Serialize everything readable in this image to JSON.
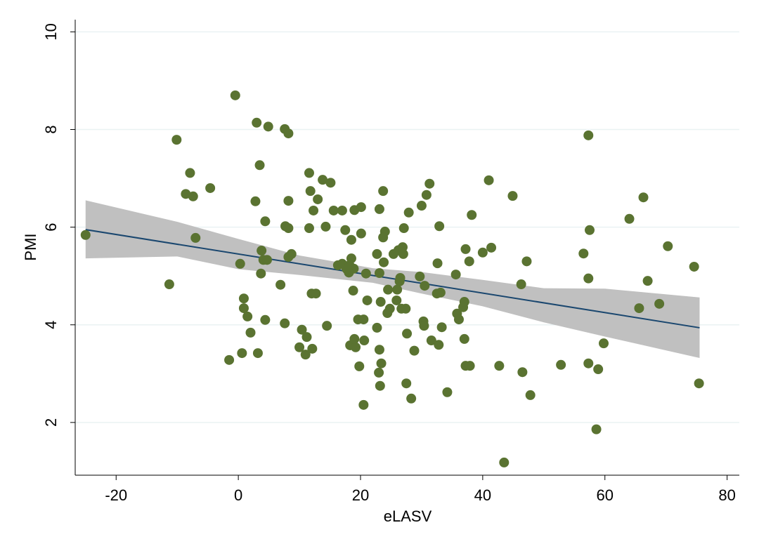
{
  "chart_data": {
    "type": "scatter",
    "x_label": "eLASV",
    "y_label": "PMI",
    "xlim": [
      -26.7,
      82.0
    ],
    "xticks": [
      -20,
      0,
      20,
      40,
      60,
      80
    ],
    "ylim": [
      0.92,
      10.25
    ],
    "yticks": [
      2,
      4,
      6,
      8,
      10
    ],
    "grid": true,
    "points": {
      "color": "#5a7331",
      "x": [
        -25.0,
        -11.3,
        -10.1,
        -7.9,
        -8.6,
        -7.4,
        -4.6,
        -7.0,
        -0.5,
        -1.5,
        0.3,
        0.9,
        0.9,
        1.5,
        2.0,
        0.6,
        3.0,
        4.9,
        2.8,
        3.5,
        4.4,
        3.8,
        4.1,
        4.7,
        3.7,
        4.4,
        3.2,
        7.6,
        8.2,
        8.2,
        7.7,
        8.2,
        8.7,
        8.2,
        6.9,
        7.6,
        10.4,
        11.2,
        10.0,
        11.0,
        12.1,
        11.6,
        11.8,
        13.0,
        12.3,
        11.6,
        12.0,
        12.7,
        13.8,
        15.1,
        14.3,
        14.5,
        15.6,
        17.0,
        19.0,
        20.1,
        17.5,
        20.1,
        18.5,
        16.3,
        17.0,
        17.9,
        18.5,
        18.2,
        18.9,
        18.1,
        17.7,
        18.8,
        20.9,
        21.1,
        19.6,
        20.5,
        18.3,
        19.2,
        19.0,
        20.6,
        19.8,
        20.5,
        23.7,
        23.1,
        24.0,
        23.7,
        22.7,
        23.8,
        23.1,
        25.4,
        26.2,
        26.9,
        27.0,
        27.1,
        27.9,
        30.8,
        31.3,
        30.0,
        32.9,
        32.6,
        29.7,
        30.5,
        32.5,
        33.1,
        24.5,
        26.0,
        26.4,
        26.5,
        25.9,
        23.3,
        24.8,
        24.4,
        26.7,
        27.4,
        22.7,
        23.1,
        23.4,
        23.0,
        23.2,
        27.6,
        27.5,
        28.3,
        28.8,
        30.3,
        30.4,
        31.6,
        32.8,
        33.3,
        34.2,
        35.6,
        35.8,
        36.1,
        36.8,
        37.0,
        37.0,
        37.2,
        37.9,
        37.2,
        37.8,
        38.2,
        40.0,
        41.4,
        41.0,
        44.9,
        42.7,
        43.5,
        46.3,
        47.2,
        46.5,
        47.8,
        52.8,
        57.3,
        57.5,
        56.5,
        57.3,
        57.3,
        58.9,
        58.6,
        59.8,
        64.0,
        66.3,
        65.6,
        67.0,
        68.9,
        70.3,
        74.6,
        75.4
      ],
      "values": [
        5.84,
        4.83,
        7.79,
        7.11,
        6.68,
        6.63,
        6.8,
        5.78,
        8.7,
        3.28,
        5.25,
        4.54,
        4.34,
        4.17,
        3.84,
        3.42,
        8.14,
        8.06,
        6.53,
        7.27,
        6.12,
        5.52,
        5.33,
        5.33,
        5.05,
        4.1,
        3.42,
        8.01,
        7.92,
        6.54,
        6.02,
        5.98,
        5.45,
        5.39,
        4.82,
        4.03,
        3.9,
        3.75,
        3.54,
        3.39,
        3.51,
        7.11,
        6.74,
        6.57,
        6.34,
        5.98,
        4.64,
        4.64,
        6.97,
        6.91,
        6.01,
        3.98,
        6.34,
        6.34,
        6.35,
        6.41,
        5.94,
        5.87,
        5.74,
        5.22,
        5.25,
        5.12,
        5.36,
        5.22,
        5.15,
        5.07,
        5.15,
        4.7,
        5.05,
        4.5,
        4.11,
        4.11,
        3.58,
        3.54,
        3.71,
        3.68,
        3.15,
        2.36,
        6.74,
        6.37,
        5.91,
        5.79,
        5.45,
        5.28,
        5.06,
        5.45,
        5.53,
        5.59,
        5.45,
        5.98,
        6.3,
        6.66,
        6.89,
        6.44,
        6.02,
        5.26,
        4.99,
        4.8,
        4.64,
        4.66,
        4.72,
        4.72,
        4.89,
        4.96,
        4.5,
        4.47,
        4.33,
        4.24,
        4.33,
        4.33,
        3.94,
        3.49,
        3.21,
        3.02,
        2.75,
        3.82,
        2.8,
        2.49,
        3.47,
        4.07,
        3.98,
        3.68,
        3.59,
        3.95,
        2.62,
        5.03,
        4.23,
        4.11,
        4.36,
        4.47,
        3.71,
        3.16,
        3.16,
        5.55,
        5.3,
        6.25,
        5.48,
        5.58,
        6.96,
        6.64,
        3.16,
        1.18,
        4.83,
        5.3,
        3.03,
        2.56,
        3.18,
        7.88,
        5.94,
        5.46,
        4.95,
        3.21,
        3.09,
        1.86,
        3.62,
        6.17,
        6.61,
        4.34,
        4.9,
        4.43,
        5.61,
        5.19,
        2.8
      ]
    },
    "fit": {
      "color": "#1a476f",
      "x": [
        -25.0,
        75.5
      ],
      "values": [
        5.95,
        3.94
      ]
    },
    "ci": {
      "color": "#c0c0c0",
      "x": [
        -25.0,
        -10.0,
        0.0,
        10.0,
        22.0,
        30.0,
        40.0,
        50.0,
        60.0,
        75.5
      ],
      "lower": [
        5.36,
        5.4,
        5.14,
        5.02,
        4.86,
        4.64,
        4.38,
        4.05,
        3.76,
        3.32
      ],
      "upper": [
        6.55,
        6.11,
        5.76,
        5.42,
        5.16,
        5.08,
        4.92,
        4.75,
        4.74,
        4.56
      ]
    }
  }
}
